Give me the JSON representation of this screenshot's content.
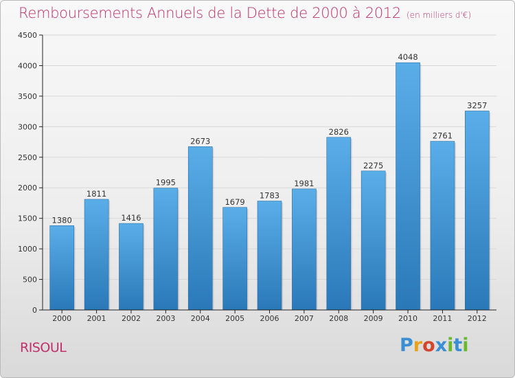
{
  "chart_data": {
    "type": "bar",
    "title": "Remboursements Annuels de la Dette de 2000 à 2012",
    "subtitle": "(en milliers d'€)",
    "categories": [
      "2000",
      "2001",
      "2002",
      "2003",
      "2004",
      "2005",
      "2006",
      "2007",
      "2008",
      "2009",
      "2010",
      "2011",
      "2012"
    ],
    "values": [
      1380,
      1811,
      1416,
      1995,
      2673,
      1679,
      1783,
      1981,
      2826,
      2275,
      4048,
      2761,
      3257
    ],
    "yticks": [
      0,
      500,
      1000,
      1500,
      2000,
      2500,
      3000,
      3500,
      4000,
      4500
    ],
    "ylim": [
      0,
      4500
    ],
    "grid": true,
    "bar_color_top": "#5aaee8",
    "bar_color_bottom": "#2a78b8"
  },
  "footer": {
    "place": "RISOUL",
    "logo": "Proxiti",
    "logo_colors": [
      "#3a8fd4",
      "#e8a21a",
      "#d4452d",
      "#3a8fd4",
      "#6ab82e",
      "#3a8fd4",
      "#6ab82e"
    ]
  },
  "colors": {
    "title": "#c0306a",
    "axis": "#222222",
    "grid": "#d8d8d8"
  }
}
